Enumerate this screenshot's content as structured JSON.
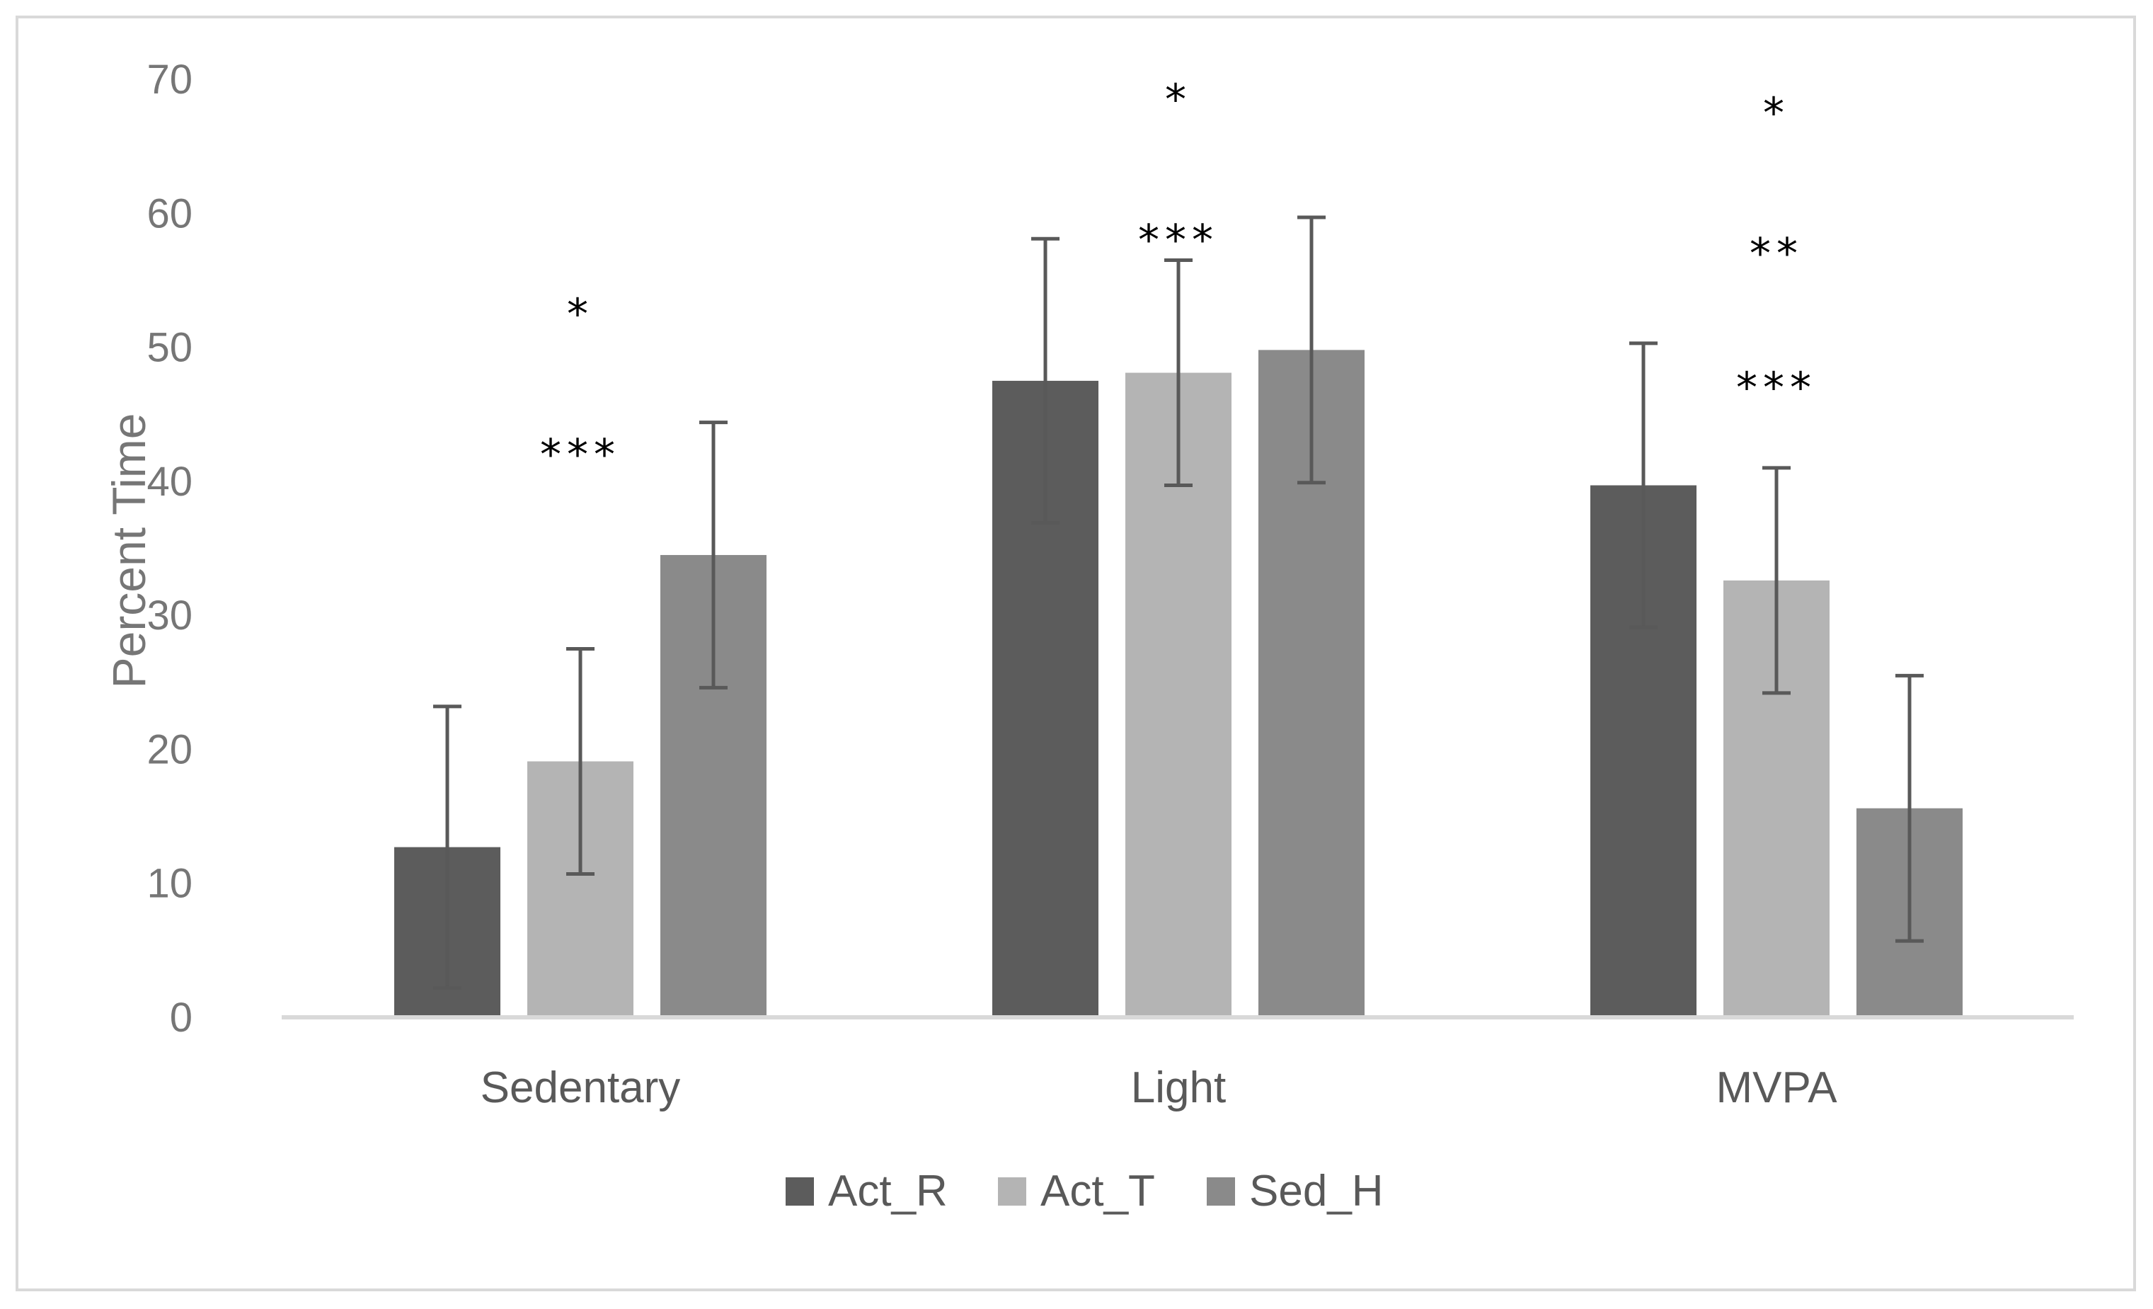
{
  "chart_data": {
    "type": "bar",
    "title": "",
    "xlabel": "",
    "ylabel": "Percent Time",
    "ylim": [
      0,
      70
    ],
    "yticks": [
      0,
      10,
      20,
      30,
      40,
      50,
      60,
      70
    ],
    "categories": [
      "Sedentary",
      "Light",
      "MVPA"
    ],
    "series": [
      {
        "name": "Act_R",
        "color": "#5c5c5c",
        "values": [
          12.7,
          47.5,
          39.7
        ],
        "error": [
          10.5,
          10.6,
          10.6
        ]
      },
      {
        "name": "Act_T",
        "color": "#b4b4b4",
        "values": [
          19.1,
          48.1,
          32.6
        ],
        "error": [
          8.4,
          8.4,
          8.4
        ]
      },
      {
        "name": "Sed_H",
        "color": "#8a8a8a",
        "values": [
          34.5,
          49.8,
          15.6
        ],
        "error": [
          9.9,
          9.9,
          9.9
        ]
      }
    ],
    "error_bar_color": "#595959",
    "legend_position": "bottom",
    "grid": false,
    "annotations": [
      {
        "category": "Sedentary",
        "text": "*",
        "y": 53
      },
      {
        "category": "Sedentary",
        "text": "***",
        "y": 42.5
      },
      {
        "category": "Light",
        "text": "*",
        "y": 69
      },
      {
        "category": "Light",
        "text": "***",
        "y": 58.5
      },
      {
        "category": "MVPA",
        "text": "*",
        "y": 68
      },
      {
        "category": "MVPA",
        "text": "**",
        "y": 57.5
      },
      {
        "category": "MVPA",
        "text": "***",
        "y": 47.5
      }
    ]
  }
}
